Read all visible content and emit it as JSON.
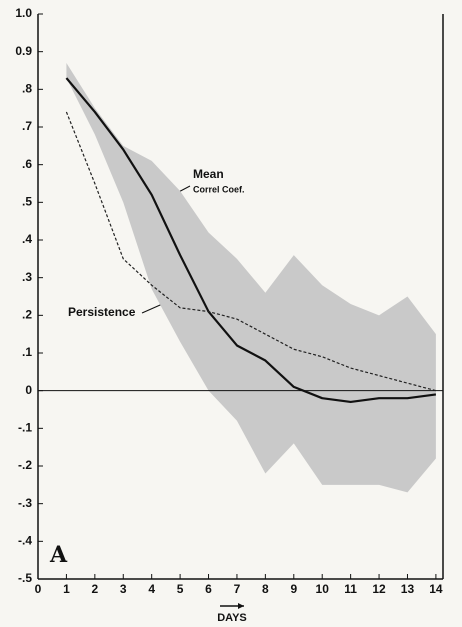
{
  "chart_data": {
    "type": "line",
    "x": [
      1,
      2,
      3,
      4,
      5,
      6,
      7,
      8,
      9,
      10,
      11,
      12,
      13,
      14
    ],
    "series": [
      {
        "name": "Mean",
        "color": "#111111",
        "dash": false,
        "values": [
          0.83,
          0.74,
          0.64,
          0.52,
          0.36,
          0.21,
          0.12,
          0.08,
          0.01,
          -0.02,
          -0.03,
          -0.02,
          -0.02,
          -0.01
        ]
      },
      {
        "name": "Persistence",
        "color": "#222222",
        "dash": true,
        "values": [
          0.74,
          0.55,
          0.35,
          0.28,
          0.22,
          0.21,
          0.19,
          0.15,
          0.11,
          0.09,
          0.06,
          0.04,
          0.02,
          0.0
        ]
      }
    ],
    "band": {
      "color": "#c9c9c9",
      "upper": [
        0.87,
        0.75,
        0.65,
        0.61,
        0.53,
        0.42,
        0.35,
        0.26,
        0.36,
        0.28,
        0.23,
        0.2,
        0.25,
        0.15
      ],
      "lower": [
        0.83,
        0.68,
        0.5,
        0.27,
        0.13,
        0.0,
        -0.08,
        -0.22,
        -0.14,
        -0.25,
        -0.25,
        -0.25,
        -0.27,
        -0.18
      ]
    },
    "annotations": [
      "Correl Coef.",
      "A"
    ],
    "xlabel": "DAYS",
    "xlim": [
      0,
      14.25
    ],
    "xticks": [
      0,
      1,
      2,
      3,
      4,
      5,
      6,
      7,
      8,
      9,
      10,
      11,
      12,
      13,
      14
    ],
    "ylim": [
      -0.5,
      1.0
    ],
    "yticks": [
      {
        "value": 1.0,
        "label": "1.0"
      },
      {
        "value": 0.9,
        "label": "0.9"
      },
      {
        "value": 0.8,
        "label": ".8"
      },
      {
        "value": 0.7,
        "label": ".7"
      },
      {
        "value": 0.6,
        "label": ".6"
      },
      {
        "value": 0.5,
        "label": ".5"
      },
      {
        "value": 0.4,
        "label": ".4"
      },
      {
        "value": 0.3,
        "label": ".3"
      },
      {
        "value": 0.2,
        "label": ".2"
      },
      {
        "value": 0.1,
        "label": ".1"
      },
      0,
      {
        "value": -0.1,
        "label": "-.1"
      },
      {
        "value": -0.2,
        "label": "-.2"
      },
      {
        "value": -0.3,
        "label": "-.3"
      },
      {
        "value": -0.4,
        "label": "-.4"
      },
      {
        "value": -0.5,
        "label": "-.5"
      }
    ]
  }
}
